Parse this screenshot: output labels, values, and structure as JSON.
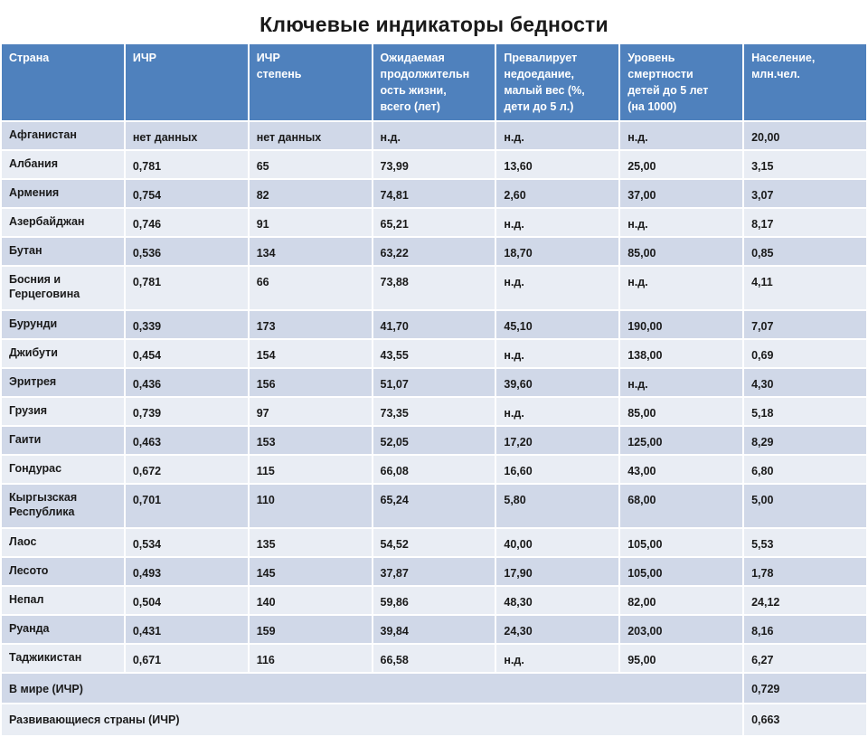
{
  "title": "Ключевые индикаторы бедности",
  "table": {
    "headers": [
      "Страна",
      "ИЧР",
      "ИЧР\nстепень",
      "Ожидаемая\nпродолжительн\nость жизни,\nвсего (лет)",
      "Превалирует\nнедоедание,\nмалый вес (%,\nдети до 5 л.)",
      "Уровень\nсмертности\nдетей до 5 лет\n(на 1000)",
      "Население,\nмлн.чел."
    ],
    "rows": [
      [
        "Афганистан",
        "нет данных",
        "нет данных",
        "н.д.",
        "н.д.",
        "н.д.",
        "20,00"
      ],
      [
        "Албания",
        "0,781",
        "65",
        "73,99",
        "13,60",
        "25,00",
        "3,15"
      ],
      [
        "Армения",
        "0,754",
        "82",
        "74,81",
        "2,60",
        "37,00",
        "3,07"
      ],
      [
        "Азербайджан",
        "0,746",
        "91",
        "65,21",
        "н.д.",
        "н.д.",
        "8,17"
      ],
      [
        "Бутан",
        "0,536",
        "134",
        "63,22",
        "18,70",
        "85,00",
        "0,85"
      ],
      [
        "Босния и\nГерцеговина",
        "0,781",
        "66",
        "73,88",
        "н.д.",
        "н.д.",
        "4,11"
      ],
      [
        "Бурунди",
        "0,339",
        "173",
        "41,70",
        "45,10",
        "190,00",
        "7,07"
      ],
      [
        "Джибути",
        "0,454",
        "154",
        "43,55",
        "н.д.",
        "138,00",
        "0,69"
      ],
      [
        "Эритрея",
        "0,436",
        "156",
        "51,07",
        "39,60",
        "н.д.",
        "4,30"
      ],
      [
        "Грузия",
        "0,739",
        "97",
        "73,35",
        "н.д.",
        "85,00",
        "5,18"
      ],
      [
        "Гаити",
        "0,463",
        "153",
        "52,05",
        "17,20",
        "125,00",
        "8,29"
      ],
      [
        "Гондурас",
        "0,672",
        "115",
        "66,08",
        "16,60",
        "43,00",
        "6,80"
      ],
      [
        "Кыргызская\nРеспублика",
        "0,701",
        "110",
        "65,24",
        "5,80",
        "68,00",
        "5,00"
      ],
      [
        "Лаос",
        "0,534",
        "135",
        "54,52",
        "40,00",
        "105,00",
        "5,53"
      ],
      [
        "Лесото",
        "0,493",
        "145",
        "37,87",
        "17,90",
        "105,00",
        "1,78"
      ],
      [
        "Непал",
        "0,504",
        "140",
        "59,86",
        "48,30",
        "82,00",
        "24,12"
      ],
      [
        "Руанда",
        "0,431",
        "159",
        "39,84",
        "24,30",
        "203,00",
        "8,16"
      ],
      [
        "Таджикистан",
        "0,671",
        "116",
        "66,58",
        "н.д.",
        "95,00",
        "6,27"
      ]
    ],
    "summary": [
      {
        "label": "В мире (ИЧР)",
        "value": "0,729"
      },
      {
        "label": "Развивающиеся страны (ИЧР)",
        "value": "0,663"
      }
    ]
  }
}
